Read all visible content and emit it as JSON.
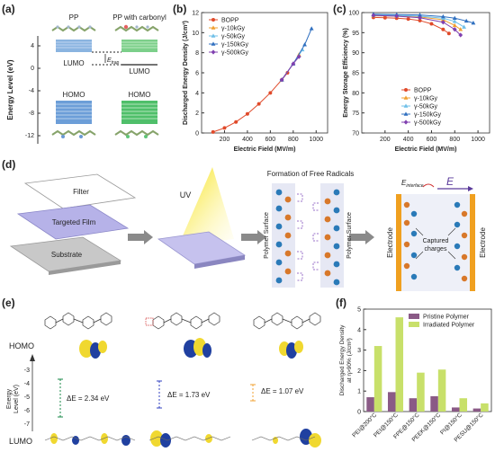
{
  "panel_labels": [
    "(a)",
    "(b)",
    "(c)",
    "(d)",
    "(e)",
    "(f)"
  ],
  "panel_a": {
    "ylabel": "Energy Level (eV)",
    "yticks": [
      "4",
      "0",
      "-4",
      "-8",
      "-12"
    ],
    "col_titles": [
      "PP",
      "PP with carbonyl"
    ],
    "lumo": "LUMO",
    "homo": "HOMO",
    "etrap": "E",
    "etrap_sub": "trap"
  },
  "chart_data": [
    {
      "panel": "b",
      "type": "line",
      "xlabel": "Electric Field (MV/m)",
      "ylabel": "Discharged Energy Density (J/cm³)",
      "xlim": [
        0,
        1100
      ],
      "ylim": [
        0,
        12
      ],
      "xticks": [
        200,
        400,
        600,
        800,
        1000
      ],
      "yticks": [
        0,
        2,
        4,
        6,
        8,
        10,
        12
      ],
      "series": [
        {
          "name": "BOPP",
          "color": "#e04a2a",
          "marker": "circle",
          "x": [
            100,
            200,
            300,
            400,
            500,
            600,
            700,
            750
          ],
          "y": [
            0.1,
            0.5,
            1.1,
            1.9,
            2.9,
            4.0,
            5.3,
            6.0
          ]
        },
        {
          "name": "γ-10kGy",
          "color": "#f0a030",
          "marker": "triangle",
          "x": [
            700,
            800,
            850
          ],
          "y": [
            5.3,
            6.9,
            7.8
          ]
        },
        {
          "name": "γ-50kGy",
          "color": "#70c0e8",
          "marker": "triangle",
          "x": [
            700,
            800,
            880
          ],
          "y": [
            5.3,
            6.9,
            8.3
          ]
        },
        {
          "name": "γ-150kGy",
          "color": "#3070c0",
          "marker": "triangle",
          "x": [
            700,
            800,
            900,
            960
          ],
          "y": [
            5.3,
            6.9,
            8.8,
            10.4
          ]
        },
        {
          "name": "γ-500kGy",
          "color": "#8040b0",
          "marker": "diamond",
          "x": [
            700,
            800,
            850
          ],
          "y": [
            5.3,
            6.9,
            7.6
          ]
        }
      ]
    },
    {
      "panel": "c",
      "type": "line",
      "xlabel": "Electric Field (MV/m)",
      "ylabel": "Energy Storage Efficiency (%)",
      "xlim": [
        0,
        1100
      ],
      "ylim": [
        70,
        100
      ],
      "xticks": [
        200,
        400,
        600,
        800,
        1000
      ],
      "yticks": [
        70,
        75,
        80,
        85,
        90,
        95,
        100
      ],
      "series": [
        {
          "name": "BOPP",
          "color": "#e04a2a",
          "marker": "circle",
          "x": [
            100,
            200,
            300,
            400,
            500,
            600,
            700,
            750
          ],
          "y": [
            98.8,
            98.7,
            98.6,
            98.4,
            98.0,
            97.2,
            95.8,
            94.8
          ]
        },
        {
          "name": "γ-10kGy",
          "color": "#f0a030",
          "marker": "triangle",
          "x": [
            100,
            300,
            500,
            700,
            800,
            850
          ],
          "y": [
            99.2,
            99.1,
            98.9,
            98.2,
            96.8,
            95.8
          ]
        },
        {
          "name": "γ-50kGy",
          "color": "#70c0e8",
          "marker": "triangle",
          "x": [
            100,
            300,
            500,
            700,
            800,
            880
          ],
          "y": [
            99.4,
            99.3,
            99.1,
            98.6,
            97.8,
            96.4
          ]
        },
        {
          "name": "γ-150kGy",
          "color": "#3070c0",
          "marker": "triangle",
          "x": [
            100,
            300,
            500,
            700,
            800,
            900,
            960
          ],
          "y": [
            99.6,
            99.5,
            99.4,
            99.0,
            98.6,
            97.9,
            97.4
          ]
        },
        {
          "name": "γ-500kGy",
          "color": "#8040b0",
          "marker": "diamond",
          "x": [
            100,
            300,
            500,
            700,
            800,
            850
          ],
          "y": [
            99.3,
            99.1,
            98.7,
            97.6,
            95.8,
            94.4
          ]
        }
      ]
    },
    {
      "panel": "f",
      "type": "bar",
      "ylabel_line1": "Discharged Energy Density",
      "ylabel_line2": "at η>90% (J/cm³)",
      "ylim": [
        0,
        5
      ],
      "yticks": [
        0,
        1,
        2,
        3,
        4,
        5
      ],
      "categories": [
        "PEI@200°C",
        "PEI@150°C",
        "FPE@150°C",
        "PEEK@150°C",
        "PI@150°C",
        "PESU@150°C"
      ],
      "series": [
        {
          "name": "Pristine Polymer",
          "color": "#8a5a86",
          "values": [
            0.7,
            0.95,
            0.65,
            0.75,
            0.2,
            0.15
          ]
        },
        {
          "name": "Irradiated Polymer",
          "color": "#c8e06a",
          "values": [
            3.2,
            4.6,
            1.9,
            2.05,
            0.65,
            0.4
          ]
        }
      ]
    }
  ],
  "panel_d": {
    "filter": "Filter",
    "film": "Targeted Film",
    "substrate": "Substrate",
    "uv": "UV",
    "free_radicals": "Formation of Free Radicals",
    "polymer_surface": "Polymer Surface",
    "electrode": "Electrode",
    "captured_charges_line1": "Captured",
    "captured_charges_line2": "charges",
    "e_interface": "E",
    "e_interface_sub": "interface",
    "e_field": "E"
  },
  "panel_e": {
    "homo": "HOMO",
    "lumo": "LUMO",
    "ylabel_line1": "Energy",
    "ylabel_line2": "Level (eV)",
    "yticks": [
      "-3",
      "-4",
      "-5",
      "-6",
      "-7"
    ],
    "gaps": [
      "ΔE = 2.34 eV",
      "ΔE = 1.73 eV",
      "ΔE = 1.07 eV"
    ],
    "gap_colors": [
      "#1a8a4a",
      "#3040c0",
      "#f0a030"
    ]
  }
}
